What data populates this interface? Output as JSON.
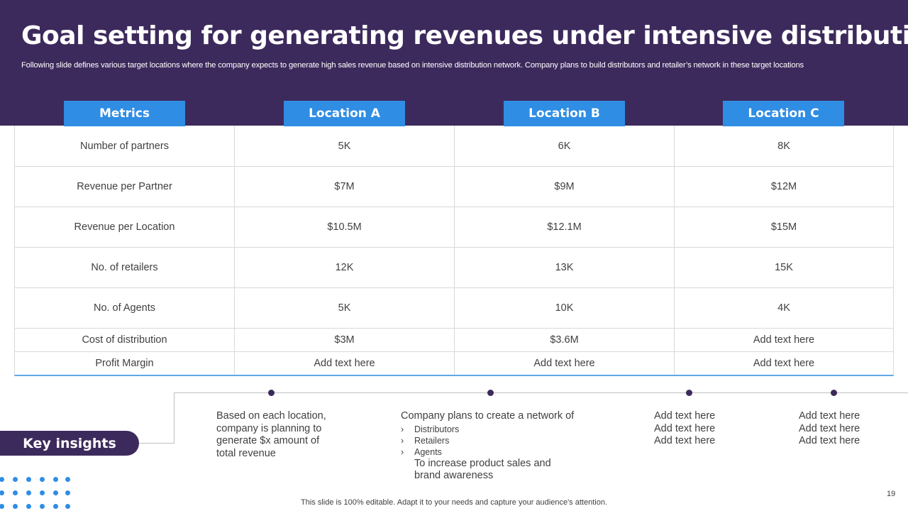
{
  "slide": {
    "title": "Goal setting for generating revenues under intensive distribution",
    "subtitle": "Following slide defines various target locations where the company expects to  generate high sales revenue based on intensive distribution network. Company plans to build distributors and retailer’s network in these target locations"
  },
  "table": {
    "headers": [
      "Metrics",
      "Location A",
      "Location B",
      "Location C"
    ],
    "rows": [
      [
        "Number of partners",
        "5K",
        "6K",
        "8K"
      ],
      [
        "Revenue per Partner",
        "$7M",
        "$9M",
        "$12M"
      ],
      [
        "Revenue per Location",
        "$10.5M",
        "$12.1M",
        "$15M"
      ],
      [
        "No. of retailers",
        "12K",
        "13K",
        "15K"
      ],
      [
        "No. of Agents",
        "5K",
        "10K",
        "4K"
      ],
      [
        "Cost of distribution",
        "$3M",
        "$3.6M",
        "Add text here"
      ],
      [
        "Profit Margin",
        "Add text here",
        "Add text here",
        "Add text here"
      ]
    ]
  },
  "insights": {
    "label": "Key insights",
    "item1": [
      "Based on each location,",
      "company is planning to",
      "generate $x amount of",
      "total revenue"
    ],
    "item2": {
      "intro": "Company plans to create a network of",
      "bullets": [
        "Distributors",
        "Retailers",
        "Agents"
      ],
      "after": [
        "To increase product sales and",
        "brand awareness"
      ]
    },
    "item3": [
      "Add text here",
      "Add text here",
      "Add text here"
    ],
    "item4": [
      "Add text here",
      "Add text here",
      "Add text here"
    ]
  },
  "footer": {
    "note": "This slide is 100% editable. Adapt it to your needs and capture your audience's attention.",
    "page_number": "19"
  },
  "colors": {
    "header_band": "#3d2a5c",
    "accent_blue": "#2f8de4",
    "pill": "#3d2a5c"
  }
}
